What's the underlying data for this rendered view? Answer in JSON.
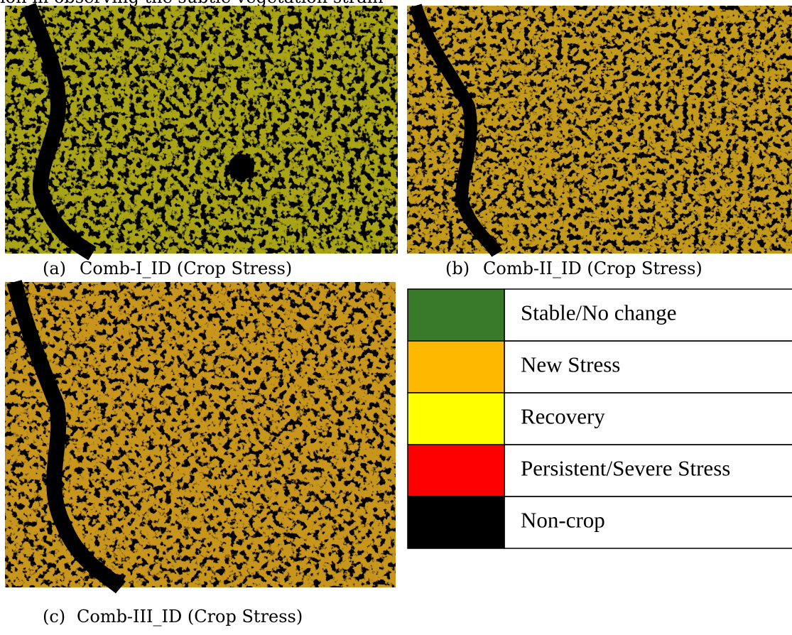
{
  "header": {
    "text": "ion in observing the subtle vegetation strain"
  },
  "panels": [
    {
      "label": "(a)",
      "caption": "Comb-I_ID (Crop Stress)"
    },
    {
      "label": "(b)",
      "caption": "Comb-II_ID (Crop Stress)"
    },
    {
      "label": "(c)",
      "caption": "Comb-III_ID (Crop Stress)"
    }
  ],
  "legend": [
    {
      "label": "Stable/No change",
      "color": "#38792a"
    },
    {
      "label": "New Stress",
      "color": "#ffb800"
    },
    {
      "label": "Recovery",
      "color": "#ffff00"
    },
    {
      "label": "Persistent/Severe Stress",
      "color": "#ff0000"
    },
    {
      "label": "Non-crop",
      "color": "#000000"
    }
  ]
}
